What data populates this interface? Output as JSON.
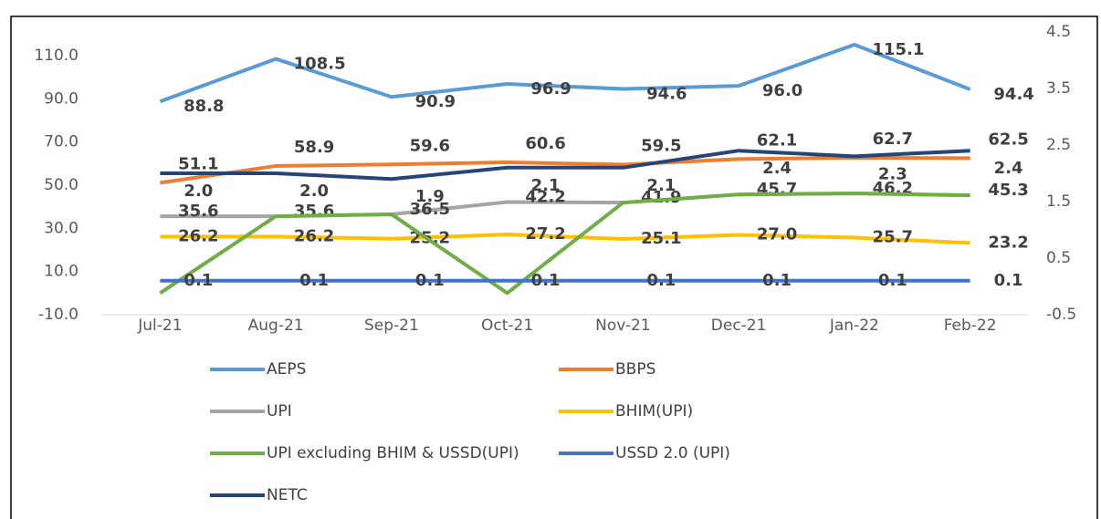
{
  "chart_data": {
    "type": "line",
    "categories": [
      "Jul-21",
      "Aug-21",
      "Sep-21",
      "Oct-21",
      "Nov-21",
      "Dec-21",
      "Jan-22",
      "Feb-22"
    ],
    "ylim": [
      -10,
      121
    ],
    "yticks": [
      {
        "value": -10,
        "label": "-10.0"
      },
      {
        "value": 10,
        "label": "10.0"
      },
      {
        "value": 30,
        "label": "30.0"
      },
      {
        "value": 50,
        "label": "50.0"
      },
      {
        "value": 70,
        "label": "70.0"
      },
      {
        "value": 90,
        "label": "90.0"
      },
      {
        "value": 110,
        "label": "110.0"
      }
    ],
    "y2lim": [
      -0.5,
      4.5
    ],
    "y2ticks": [
      -0.5,
      0.5,
      1.5,
      2.5,
      3.5,
      4.5
    ],
    "legend": "bottom",
    "series": [
      {
        "name": "AEPS",
        "color": "#5b9bd5",
        "values": [
          88.8,
          108.5,
          90.9,
          96.9,
          94.6,
          96.0,
          115.1,
          94.4
        ],
        "value_labels": [
          "88.8",
          "108.5",
          "90.9",
          "96.9",
          "94.6",
          "96.0",
          "115.1",
          "94.4"
        ]
      },
      {
        "name": "BBPS",
        "color": "#ed7d31",
        "values": [
          51.1,
          58.9,
          59.6,
          60.6,
          59.5,
          62.1,
          62.7,
          62.5
        ],
        "value_labels": [
          "51.1",
          "58.9",
          "59.6",
          "60.6",
          "59.5",
          "62.1",
          "62.7",
          "62.5"
        ]
      },
      {
        "name": "UPI",
        "color": "#a5a5a5",
        "values": [
          35.6,
          35.6,
          36.5,
          42.2,
          41.9,
          45.7,
          46.2,
          45.3
        ],
        "value_labels": [
          "35.6",
          "35.6",
          "36.5",
          "42.2",
          "41.9",
          "45.7",
          "46.2",
          "45.3"
        ]
      },
      {
        "name": "BHIM(UPI)",
        "color": "#ffc000",
        "values": [
          26.2,
          26.2,
          25.2,
          27.2,
          25.1,
          27.0,
          25.7,
          23.2
        ],
        "value_labels": [
          "26.2",
          "26.2",
          "25.2",
          "27.2",
          "25.1",
          "27.0",
          "25.7",
          "23.2"
        ]
      },
      {
        "name": "UPI excluding BHIM & USSD(UPI)",
        "color": "#70ad47",
        "values": [
          0,
          35.6,
          36.5,
          0,
          41.9,
          45.7,
          46.2,
          45.3
        ]
      },
      {
        "name": "USSD 2.0 (UPI)",
        "color": "#4472c4",
        "axis": "y2",
        "values": [
          0.1,
          0.1,
          0.1,
          0.1,
          0.1,
          0.1,
          0.1,
          0.1
        ],
        "value_labels": [
          "0.1",
          "0.1",
          "0.1",
          "0.1",
          "0.1",
          "0.1",
          "0.1",
          "0.1"
        ]
      },
      {
        "name": "NETC",
        "color": "#264478",
        "axis": "y2",
        "values": [
          2.0,
          2.0,
          1.9,
          2.1,
          2.1,
          2.4,
          2.3,
          2.4
        ],
        "value_labels": [
          "2.0",
          "2.0",
          "1.9",
          "2.1",
          "2.1",
          "2.4",
          "2.3",
          "2.4"
        ]
      }
    ]
  }
}
